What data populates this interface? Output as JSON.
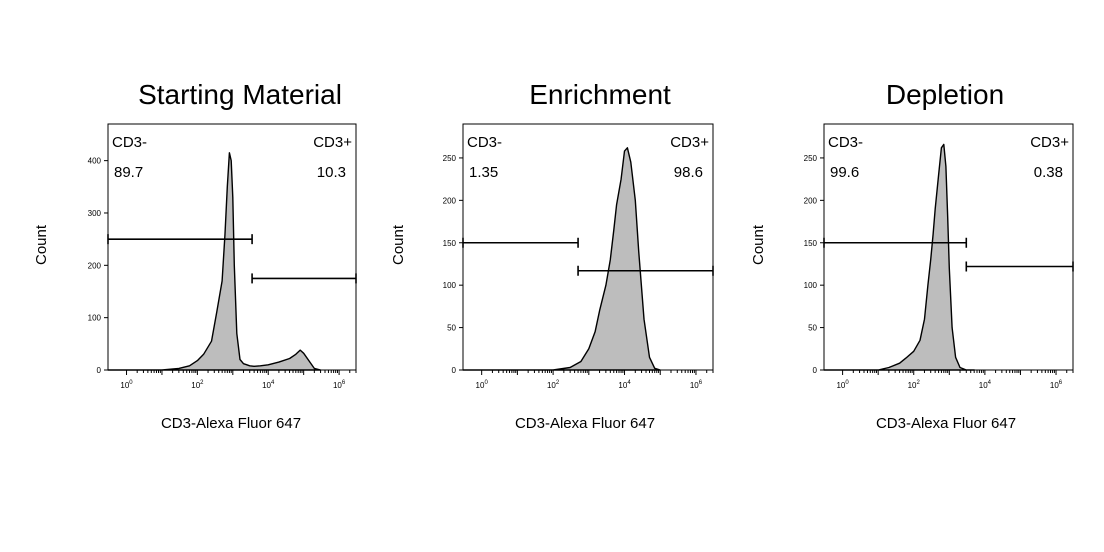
{
  "chart_data": [
    {
      "type": "area",
      "title": "Starting Material",
      "xlabel": "CD3-Alexa Fluor 647",
      "ylabel": "Count",
      "x_scale": "log",
      "xlim": [
        0.3,
        3000000
      ],
      "ylim": [
        0,
        470
      ],
      "yticks": [
        "0",
        "100",
        "200",
        "300",
        "400"
      ],
      "ytick_values": [
        0,
        100,
        200,
        300,
        400
      ],
      "xticks": [
        {
          "base": "10",
          "exp": "0",
          "value": 1
        },
        {
          "base": "10",
          "exp": "2",
          "value": 100
        },
        {
          "base": "10",
          "exp": "4",
          "value": 10000
        },
        {
          "base": "10",
          "exp": "6",
          "value": 1000000
        }
      ],
      "histogram": {
        "x": [
          0.3,
          1,
          10,
          30,
          60,
          100,
          150,
          250,
          350,
          500,
          600,
          700,
          800,
          900,
          1000,
          1100,
          1300,
          1600,
          2000,
          2500,
          3000,
          4000,
          6000,
          10000,
          20000,
          40000,
          60000,
          80000,
          100000,
          150000,
          200000,
          300000
        ],
        "y": [
          0,
          0,
          0,
          3,
          8,
          18,
          30,
          55,
          110,
          170,
          260,
          350,
          415,
          400,
          330,
          200,
          70,
          20,
          12,
          10,
          8,
          7,
          8,
          10,
          15,
          22,
          30,
          38,
          32,
          15,
          3,
          0
        ]
      },
      "gates": [
        {
          "name": "CD3-",
          "percent": "89.7",
          "x_range": [
            0.3,
            3500
          ],
          "y": 250
        },
        {
          "name": "CD3+",
          "percent": "10.3",
          "x_range": [
            3500,
            3000000
          ],
          "y": 175
        }
      ]
    },
    {
      "type": "area",
      "title": "Enrichment",
      "xlabel": "CD3-Alexa Fluor 647",
      "ylabel": "Count",
      "x_scale": "log",
      "xlim": [
        0.3,
        3000000
      ],
      "ylim": [
        0,
        290
      ],
      "yticks": [
        "0",
        "50",
        "100",
        "150",
        "200",
        "250"
      ],
      "ytick_values": [
        0,
        50,
        100,
        150,
        200,
        250
      ],
      "xticks": [
        {
          "base": "10",
          "exp": "0",
          "value": 1
        },
        {
          "base": "10",
          "exp": "2",
          "value": 100
        },
        {
          "base": "10",
          "exp": "4",
          "value": 10000
        },
        {
          "base": "10",
          "exp": "6",
          "value": 1000000
        }
      ],
      "histogram": {
        "x": [
          0.3,
          100,
          300,
          600,
          1000,
          1500,
          2000,
          3000,
          4000,
          5000,
          6000,
          8000,
          10000,
          12000,
          15000,
          20000,
          25000,
          35000,
          50000,
          70000,
          100000
        ],
        "y": [
          0,
          0,
          3,
          10,
          25,
          45,
          70,
          100,
          130,
          165,
          195,
          225,
          258,
          262,
          245,
          200,
          140,
          60,
          15,
          2,
          0
        ]
      },
      "gates": [
        {
          "name": "CD3-",
          "percent": "1.35",
          "x_range": [
            0.3,
            500
          ],
          "y": 150
        },
        {
          "name": "CD3+",
          "percent": "98.6",
          "x_range": [
            500,
            3000000
          ],
          "y": 117
        }
      ]
    },
    {
      "type": "area",
      "title": "Depletion",
      "xlabel": "CD3-Alexa Fluor 647",
      "ylabel": "Count",
      "x_scale": "log",
      "xlim": [
        0.3,
        3000000
      ],
      "ylim": [
        0,
        290
      ],
      "yticks": [
        "0",
        "50",
        "100",
        "150",
        "200",
        "250"
      ],
      "ytick_values": [
        0,
        50,
        100,
        150,
        200,
        250
      ],
      "xticks": [
        {
          "base": "10",
          "exp": "0",
          "value": 1
        },
        {
          "base": "10",
          "exp": "2",
          "value": 100
        },
        {
          "base": "10",
          "exp": "4",
          "value": 10000
        },
        {
          "base": "10",
          "exp": "6",
          "value": 1000000
        }
      ],
      "histogram": {
        "x": [
          0.3,
          1,
          10,
          20,
          40,
          60,
          100,
          150,
          200,
          250,
          300,
          350,
          400,
          500,
          600,
          700,
          800,
          900,
          1000,
          1200,
          1500,
          2000,
          3000,
          5000
        ],
        "y": [
          0,
          0,
          0,
          3,
          8,
          14,
          22,
          35,
          60,
          100,
          130,
          160,
          190,
          230,
          262,
          266,
          240,
          180,
          120,
          50,
          15,
          3,
          0,
          0
        ]
      },
      "gates": [
        {
          "name": "CD3-",
          "percent": "99.6",
          "x_range": [
            0.3,
            3000
          ],
          "y": 150
        },
        {
          "name": "CD3+",
          "percent": "0.38",
          "x_range": [
            3000,
            3000000
          ],
          "y": 122
        }
      ]
    }
  ],
  "colors": {
    "fill": "#bdbdbd",
    "line": "#000000",
    "background": "#ffffff"
  }
}
